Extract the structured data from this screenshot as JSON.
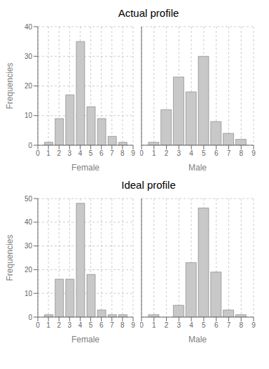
{
  "chart_data": [
    {
      "type": "bar",
      "title": "Actual profile",
      "x": [
        1,
        2,
        3,
        4,
        5,
        6,
        7,
        8
      ],
      "values": [
        1,
        9,
        17,
        35,
        13,
        9,
        3,
        1
      ],
      "color": "#c8c8c8",
      "xlabel": "Female",
      "ylabel": "Frequencies",
      "xlim": [
        0,
        9
      ],
      "xticks": [
        0,
        1,
        2,
        3,
        4,
        5,
        6,
        7,
        8,
        9
      ],
      "ylim": [
        0,
        40
      ],
      "yticks": [
        0,
        10,
        20,
        30,
        40
      ],
      "grid": true
    },
    {
      "type": "bar",
      "x": [
        1,
        2,
        3,
        4,
        5,
        6,
        7,
        8
      ],
      "values": [
        1,
        12,
        23,
        18,
        30,
        8,
        4,
        2
      ],
      "color": "#c8c8c8",
      "xlabel": "Male",
      "xlim": [
        0,
        9
      ],
      "xticks": [
        0,
        1,
        2,
        3,
        4,
        5,
        6,
        7,
        8,
        9
      ],
      "ylim": [
        0,
        40
      ],
      "yticks": [
        0,
        10,
        20,
        30,
        40
      ],
      "grid": true,
      "tick_labels": "x"
    },
    {
      "type": "bar",
      "title": "Ideal profile",
      "x": [
        1,
        2,
        3,
        4,
        5,
        6,
        7,
        8
      ],
      "values": [
        1,
        16,
        16,
        48,
        18,
        3,
        1,
        1
      ],
      "color": "#c8c8c8",
      "xlabel": "Female",
      "ylabel": "Frequencies",
      "xlim": [
        0,
        9
      ],
      "xticks": [
        0,
        1,
        2,
        3,
        4,
        5,
        6,
        7,
        8,
        9
      ],
      "ylim": [
        0,
        50
      ],
      "yticks": [
        0,
        10,
        20,
        30,
        40,
        50
      ],
      "grid": true
    },
    {
      "type": "bar",
      "x": [
        1,
        2,
        3,
        4,
        5,
        6,
        7,
        8
      ],
      "values": [
        1,
        0,
        5,
        23,
        46,
        19,
        3,
        1
      ],
      "color": "#c8c8c8",
      "xlabel": "Male",
      "xlim": [
        0,
        9
      ],
      "xticks": [
        0,
        1,
        2,
        3,
        4,
        5,
        6,
        7,
        8,
        9
      ],
      "ylim": [
        0,
        50
      ],
      "yticks": [
        0,
        10,
        20,
        30,
        40,
        50
      ],
      "grid": true,
      "tick_labels": "x"
    }
  ]
}
